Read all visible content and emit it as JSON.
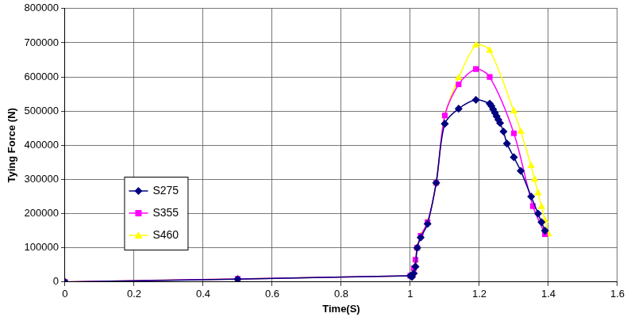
{
  "chart_data": {
    "type": "line",
    "x_label": "Time(S)",
    "y_label": "Tying Force (N)",
    "xlim": [
      0,
      1.6
    ],
    "xticks": [
      0,
      0.2,
      0.4,
      0.6,
      0.8,
      1,
      1.2,
      1.4,
      1.6
    ],
    "ylim": [
      0,
      800000
    ],
    "yticks": [
      0,
      100000,
      200000,
      300000,
      400000,
      500000,
      600000,
      700000,
      800000
    ],
    "grid": true,
    "legend": "left",
    "series": [
      {
        "name": "S275",
        "color": "#000080",
        "marker": "diamond",
        "x": [
          0,
          0.5,
          1.0,
          1.005,
          1.01,
          1.015,
          1.02,
          1.03,
          1.05,
          1.075,
          1.1,
          1.14,
          1.19,
          1.23,
          1.235,
          1.24,
          1.245,
          1.25,
          1.255,
          1.26,
          1.27,
          1.28,
          1.3,
          1.32,
          1.35,
          1.37,
          1.38,
          1.39
        ],
        "values": [
          0,
          8000,
          18000,
          15000,
          25000,
          45000,
          100000,
          130000,
          170000,
          290000,
          463000,
          507000,
          533000,
          522000,
          515000,
          505000,
          495000,
          485000,
          475000,
          465000,
          440000,
          405000,
          365000,
          325000,
          250000,
          200000,
          175000,
          150000
        ]
      },
      {
        "name": "S355",
        "color": "#ff00ff",
        "marker": "square",
        "x": [
          0,
          0.5,
          1.0,
          1.005,
          1.01,
          1.015,
          1.02,
          1.03,
          1.05,
          1.075,
          1.1,
          1.14,
          1.19,
          1.23,
          1.3,
          1.355,
          1.39
        ],
        "values": [
          0,
          9000,
          18000,
          20000,
          40000,
          65000,
          100000,
          135000,
          175000,
          290000,
          487000,
          578000,
          623000,
          600000,
          435000,
          222000,
          140000
        ]
      },
      {
        "name": "S460",
        "color": "#ffff00",
        "marker": "triangle",
        "x": [
          0,
          0.5,
          1.0,
          1.005,
          1.01,
          1.015,
          1.02,
          1.03,
          1.05,
          1.075,
          1.1,
          1.14,
          1.19,
          1.23,
          1.3,
          1.32,
          1.35,
          1.36,
          1.37,
          1.38,
          1.39,
          1.4
        ],
        "values": [
          0,
          9000,
          18000,
          20000,
          40000,
          65000,
          100000,
          135000,
          175000,
          290000,
          487000,
          597000,
          693000,
          677000,
          500000,
          440000,
          340000,
          300000,
          260000,
          220000,
          180000,
          140000
        ]
      }
    ]
  }
}
